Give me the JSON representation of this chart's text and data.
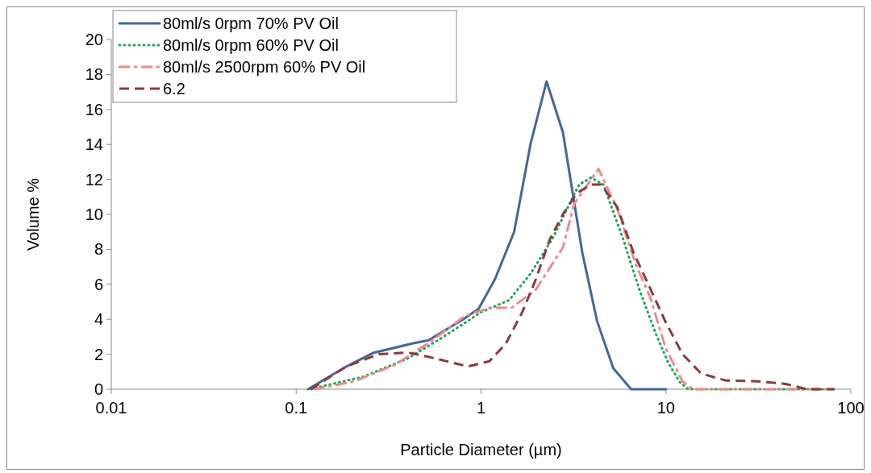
{
  "chart_data": {
    "type": "line",
    "xlabel": "Particle Diameter (µm)",
    "ylabel": "Volume %",
    "log": "x",
    "xlim": [
      0.01,
      100
    ],
    "xticks": [
      0.01,
      0.1,
      1,
      10,
      100
    ],
    "ylim": [
      0,
      20
    ],
    "yticks": [
      0,
      2,
      4,
      6,
      8,
      10,
      12,
      14,
      16,
      18,
      20
    ],
    "grid": false,
    "legend": "top left",
    "marker": "none",
    "series": [
      {
        "name": "80ml/s 0rpm 70% PV Oil",
        "color": "#44679a",
        "line_style": "solid",
        "x": [
          0.116,
          0.15,
          0.187,
          0.26,
          0.42,
          0.52,
          0.8,
          0.97,
          1.19,
          1.51,
          1.85,
          2.26,
          2.77,
          3.53,
          4.24,
          5.19,
          6.48,
          10
        ],
        "values": [
          0,
          0.7,
          1.3,
          2.07,
          2.6,
          2.8,
          4.0,
          4.6,
          6.3,
          9.0,
          14.0,
          17.6,
          14.7,
          7.8,
          3.9,
          1.2,
          0,
          0
        ]
      },
      {
        "name": "80ml/s 0rpm 60% PV Oil",
        "color": "#1fa65a",
        "line_style": "dotted",
        "x": [
          0.12,
          0.142,
          0.229,
          0.4,
          0.605,
          0.82,
          1.0,
          1.42,
          1.85,
          2.43,
          3.39,
          3.94,
          4.59,
          5.86,
          7.18,
          8.79,
          10.3,
          11.9,
          13.2,
          82.5
        ],
        "values": [
          0,
          0.2,
          0.7,
          1.75,
          2.9,
          3.8,
          4.4,
          5.1,
          6.6,
          8.6,
          11.7,
          12.1,
          11.7,
          8.6,
          5.7,
          3.2,
          1.5,
          0.4,
          0,
          0
        ]
      },
      {
        "name": "80ml/s 2500rpm 60% PV Oil",
        "color": "#ef8a8a",
        "line_style": "dashdot",
        "x": [
          0.125,
          0.207,
          0.343,
          0.547,
          0.82,
          1.11,
          1.46,
          1.98,
          2.77,
          3.19,
          4.32,
          5.46,
          6.89,
          8.19,
          10.0,
          12.3,
          14.0,
          73.8
        ],
        "values": [
          0,
          0.45,
          1.4,
          2.8,
          4.2,
          4.65,
          4.65,
          5.7,
          8.1,
          10.6,
          12.6,
          10.3,
          7.1,
          5.3,
          2.3,
          0.45,
          0,
          0
        ]
      },
      {
        "name": "6.2",
        "color": "#8b3a3a",
        "line_style": "dashed",
        "x": [
          0.12,
          0.187,
          0.28,
          0.4,
          0.52,
          0.85,
          1.11,
          1.36,
          1.67,
          1.98,
          2.36,
          2.77,
          3.29,
          3.91,
          4.46,
          5.46,
          6.68,
          8.19,
          10.0,
          12.3,
          15.5,
          21.0,
          31.5,
          44.5,
          57.8,
          81.7
        ],
        "values": [
          0,
          1.3,
          2.0,
          2.1,
          1.85,
          1.3,
          1.6,
          2.6,
          4.4,
          6.3,
          8.6,
          10.0,
          11.2,
          11.7,
          11.7,
          10.4,
          7.8,
          5.8,
          3.8,
          2.0,
          0.9,
          0.5,
          0.45,
          0.3,
          0,
          0
        ]
      }
    ]
  }
}
